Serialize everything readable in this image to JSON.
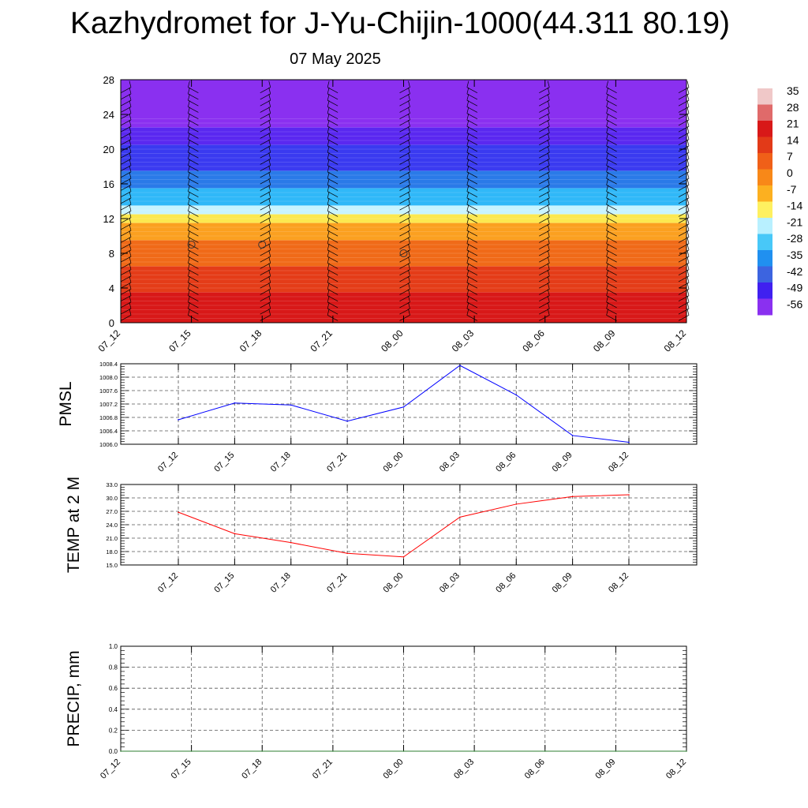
{
  "header": {
    "title": "Kazhydromet for J-Yu-Chijin-1000(44.311 80.19)",
    "date": "07 May 2025"
  },
  "chart_data": [
    {
      "type": "heatmap",
      "title": "",
      "x": [
        "07_12",
        "07_15",
        "07_18",
        "07_21",
        "08_00",
        "08_03",
        "08_06",
        "08_09",
        "08_12"
      ],
      "y_ticks": [
        0,
        4,
        8,
        12,
        16,
        20,
        24,
        28
      ],
      "ylim": [
        0,
        28
      ],
      "colorbar": {
        "ticks": [
          "35",
          "28",
          "21",
          "14",
          "7",
          "0",
          "-7",
          "-14",
          "-21",
          "-28",
          "-35",
          "-42",
          "-49",
          "-56"
        ],
        "colors": [
          "#f0c8c8",
          "#e06a6a",
          "#d81818",
          "#e23a18",
          "#f06018",
          "#f88818",
          "#fcb020",
          "#fef060",
          "#b8f0ff",
          "#48c8f8",
          "#2090f0",
          "#3c64e0",
          "#4020f0",
          "#8a30f0"
        ]
      },
      "temperature_bands": [
        {
          "from": 0,
          "to": 3.5,
          "color": "#d81818"
        },
        {
          "from": 3.5,
          "to": 6.5,
          "color": "#e43c18"
        },
        {
          "from": 6.5,
          "to": 9.5,
          "color": "#f06a18"
        },
        {
          "from": 9.5,
          "to": 11.5,
          "color": "#fba020"
        },
        {
          "from": 11.5,
          "to": 12.5,
          "color": "#fce850"
        },
        {
          "from": 12.5,
          "to": 13.5,
          "color": "#c8f4ff"
        },
        {
          "from": 13.5,
          "to": 15.5,
          "color": "#30b8f8"
        },
        {
          "from": 15.5,
          "to": 17.5,
          "color": "#2a7ae8"
        },
        {
          "from": 17.5,
          "to": 20.5,
          "color": "#3a3af0"
        },
        {
          "from": 20.5,
          "to": 22.5,
          "color": "#5a28f0"
        },
        {
          "from": 22.5,
          "to": 28,
          "color": "#8a30f0"
        }
      ],
      "markers": [
        {
          "x": "07_15",
          "y": 9
        },
        {
          "x": "07_18",
          "y": 9
        },
        {
          "x": "08_00",
          "y": 8
        }
      ]
    },
    {
      "type": "line",
      "ylabel": "PMSL",
      "x": [
        "07_12",
        "07_15",
        "07_18",
        "07_21",
        "08_00",
        "08_03",
        "08_06",
        "08_09",
        "08_12"
      ],
      "ylim": [
        1006.0,
        1008.4
      ],
      "y_ticks": [
        "1006.0",
        "1006.4",
        "1006.8",
        "1007.2",
        "1007.6",
        "1008.0",
        "1008.4"
      ],
      "series": [
        {
          "values": [
            1006.73,
            1007.23,
            1007.17,
            1006.69,
            1007.11,
            1008.35,
            1007.47,
            1006.26,
            1006.06
          ],
          "color": "#0000ff"
        }
      ]
    },
    {
      "type": "line",
      "ylabel": "TEMP at 2 M",
      "x": [
        "07_12",
        "07_15",
        "07_18",
        "07_21",
        "08_00",
        "08_03",
        "08_06",
        "08_09",
        "08_12"
      ],
      "ylim": [
        15.0,
        33.0
      ],
      "y_ticks": [
        "15.0",
        "18.0",
        "21.0",
        "24.0",
        "27.0",
        "30.0",
        "33.0"
      ],
      "series": [
        {
          "values": [
            26.8,
            22.0,
            20.0,
            17.6,
            16.8,
            25.7,
            28.6,
            30.3,
            30.7
          ],
          "color": "#ff0000"
        }
      ]
    },
    {
      "type": "line",
      "ylabel": "PRECIP, mm",
      "x": [
        "07_12",
        "07_15",
        "07_18",
        "07_21",
        "08_00",
        "08_03",
        "08_06",
        "08_09",
        "08_12"
      ],
      "ylim": [
        0.0,
        1.0
      ],
      "y_ticks": [
        "0.0",
        "0.2",
        "0.4",
        "0.6",
        "0.8",
        "1.0"
      ],
      "series": [
        {
          "values": [
            0,
            0,
            0,
            0,
            0,
            0,
            0,
            0,
            0
          ],
          "color": "#2e7d32"
        }
      ]
    }
  ]
}
